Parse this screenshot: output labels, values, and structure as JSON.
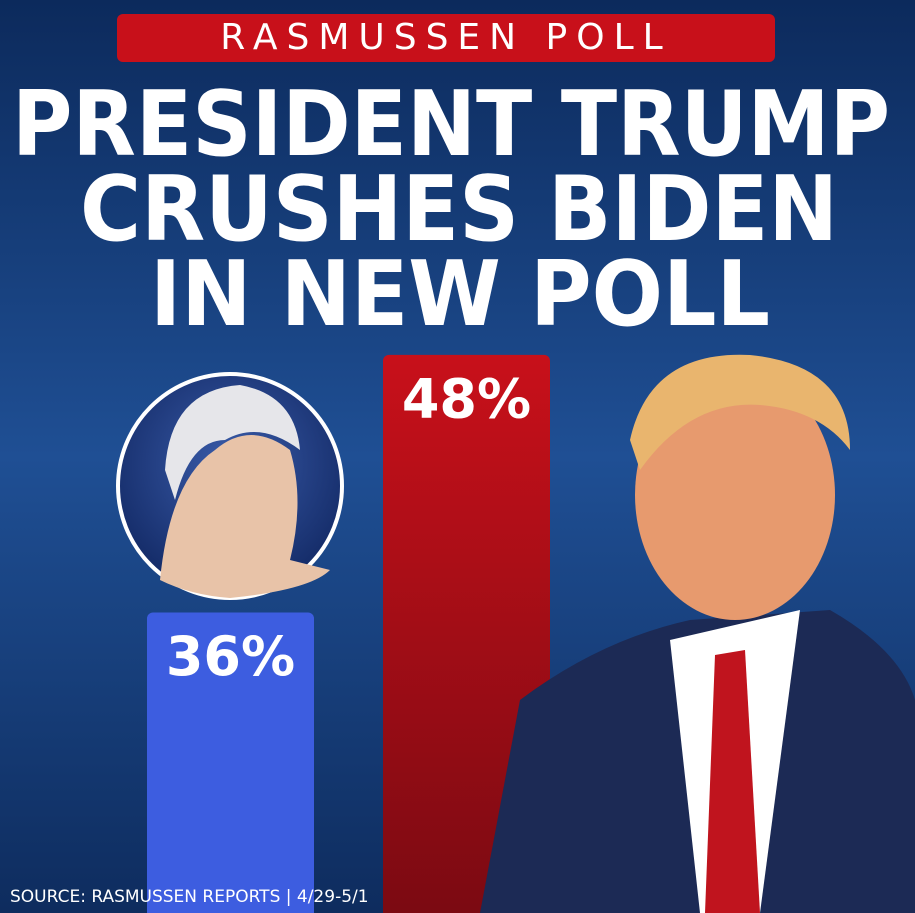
{
  "chart_data": {
    "type": "bar",
    "banner": "RASMUSSEN POLL",
    "title": [
      "PRESIDENT TRUMP",
      "CRUSHES BIDEN",
      "IN NEW POLL"
    ],
    "categories": [
      null,
      null
    ],
    "values": [
      36,
      48
    ],
    "value_labels": [
      "36%",
      "48%"
    ],
    "colors": [
      "#3d5de0",
      "#c8101a"
    ],
    "ylim": [
      22,
      50
    ],
    "source": "SOURCE: RASMUSSEN REPORTS | 4/29-5/1"
  }
}
